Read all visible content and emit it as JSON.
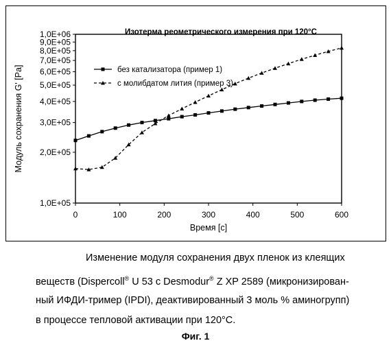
{
  "chart_data": {
    "type": "line",
    "title": "Изотерма реометрического измерения при 120°C",
    "xlabel": "Время [с]",
    "ylabel": "Модуль сохранения G' [Pa]",
    "xlim": [
      0,
      600
    ],
    "ylim": [
      100000,
      1000000
    ],
    "y_scale": "log",
    "grid": false,
    "legend_position": "upper-left",
    "x_ticks": [
      "0",
      "100",
      "200",
      "300",
      "400",
      "500",
      "600"
    ],
    "y_ticks": [
      {
        "value": 100000,
        "label": "1,0E+05"
      },
      {
        "value": 200000,
        "label": "2,0E+05"
      },
      {
        "value": 300000,
        "label": "3,0E+05"
      },
      {
        "value": 400000,
        "label": "4,0E+05"
      },
      {
        "value": 500000,
        "label": "5,0E+05"
      },
      {
        "value": 600000,
        "label": "6,0E+05"
      },
      {
        "value": 700000,
        "label": "7,0E+05"
      },
      {
        "value": 800000,
        "label": "8,0E+05"
      },
      {
        "value": 900000,
        "label": "9,0E+05"
      },
      {
        "value": 1000000,
        "label": "1,0E+06"
      }
    ],
    "series": [
      {
        "name": "без катализатора (пример 1)",
        "marker": "square",
        "line": "solid",
        "x": [
          0,
          30,
          60,
          90,
          120,
          150,
          180,
          210,
          240,
          270,
          300,
          330,
          360,
          390,
          420,
          450,
          480,
          510,
          540,
          570,
          600
        ],
        "y": [
          235000,
          250000,
          265000,
          278000,
          290000,
          300000,
          308000,
          316000,
          325000,
          333000,
          342000,
          351000,
          360000,
          368000,
          376000,
          384000,
          392000,
          400000,
          407000,
          413000,
          418000
        ]
      },
      {
        "name": "с молибдатом лития (пример 3)",
        "marker": "triangle",
        "line": "dashed",
        "x": [
          0,
          30,
          60,
          90,
          120,
          150,
          180,
          210,
          240,
          270,
          300,
          330,
          360,
          390,
          420,
          450,
          480,
          510,
          540,
          570,
          600
        ],
        "y": [
          160000,
          158000,
          163000,
          185000,
          222000,
          262000,
          296000,
          330000,
          362000,
          396000,
          432000,
          470000,
          510000,
          550000,
          590000,
          630000,
          670000,
          712000,
          752000,
          792000,
          830000
        ]
      }
    ]
  },
  "caption": {
    "line1": "Изменение модуля сохранения двух пленок из клеящих",
    "line2_a": "веществ (Dispercoll",
    "line2_sup1": "®",
    "line2_b": " U 53 с Desmodur",
    "line2_sup2": "®",
    "line2_c": " Z XP 2589 (микронизирован-",
    "line3": "ный ИФДИ-тример (IPDI), деактивированный 3 моль % аминогрупп)",
    "line4": "в процессе тепловой активации при 120°C.",
    "figure_label": "Фиг. 1"
  }
}
